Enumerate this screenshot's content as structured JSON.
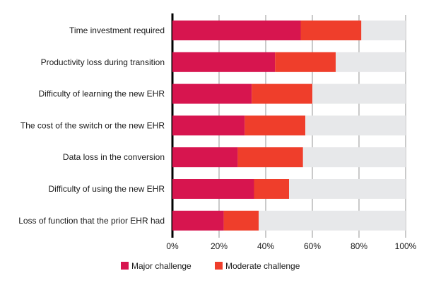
{
  "chart_data": {
    "type": "bar",
    "orientation": "horizontal",
    "stacked": true,
    "title": "",
    "xlabel": "",
    "ylabel": "",
    "xlim": [
      0,
      100
    ],
    "ticks": [
      0,
      20,
      40,
      60,
      80,
      100
    ],
    "tick_suffix": "%",
    "grid": true,
    "legend_position": "bottom",
    "categories": [
      "Time investment required",
      "Productivity loss during transition",
      "Difficulty of learning the new EHR",
      "The cost of the switch or the new EHR",
      "Data loss in the conversion",
      "Difficulty of using the new EHR",
      "Loss of function that the prior EHR had"
    ],
    "series": [
      {
        "name": "Major challenge",
        "color": "#d7154f",
        "values": [
          55,
          44,
          34,
          31,
          28,
          35,
          22
        ]
      },
      {
        "name": "Moderate challenge",
        "color": "#ef3e2b",
        "values": [
          26,
          26,
          26,
          26,
          28,
          15,
          15
        ]
      }
    ],
    "remainder_color": "#e7e8ea"
  }
}
